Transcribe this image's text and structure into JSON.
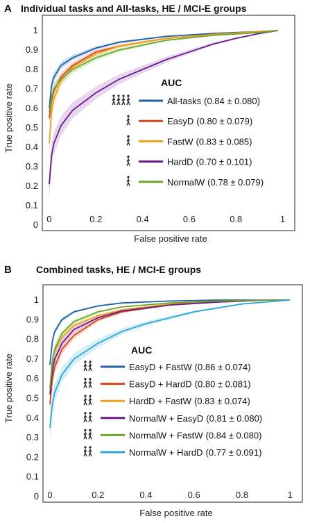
{
  "chart_data": [
    {
      "type": "line",
      "panel": "A",
      "title": "Individual tasks and All-tasks, HE / MCI-E groups",
      "xlabel": "False positive rate",
      "ylabel": "True positive rate",
      "xlim": [
        0,
        1
      ],
      "ylim": [
        0,
        1
      ],
      "xticks": [
        "0",
        "0.2",
        "0.4",
        "0.6",
        "0.8",
        "1"
      ],
      "yticks": [
        "0",
        "0.1",
        "0.2",
        "0.3",
        "0.4",
        "0.5",
        "0.6",
        "0.7",
        "0.8",
        "0.9",
        "1"
      ],
      "legend_title": "AUC",
      "legend_placement": "right",
      "grid": false,
      "series": [
        {
          "name": "All-tasks",
          "auc": "(0.84 ± 0.080)",
          "color": "#1f5fa8",
          "band": "#9ec3e0",
          "icon": "four-walkers-icon",
          "x": [
            0,
            0.01,
            0.02,
            0.05,
            0.1,
            0.2,
            0.3,
            0.5,
            0.7,
            0.9,
            0.98
          ],
          "y": [
            0.6,
            0.72,
            0.76,
            0.82,
            0.86,
            0.91,
            0.94,
            0.97,
            0.985,
            0.995,
            1
          ]
        },
        {
          "name": "EasyD",
          "auc": "(0.80 ± 0.079)",
          "color": "#d9441c",
          "band": "#f1b39e",
          "icon": "walker-1-icon",
          "x": [
            0,
            0.01,
            0.02,
            0.05,
            0.1,
            0.2,
            0.3,
            0.5,
            0.7,
            0.9,
            0.98
          ],
          "y": [
            0.55,
            0.64,
            0.69,
            0.76,
            0.82,
            0.89,
            0.92,
            0.96,
            0.98,
            0.995,
            1
          ]
        },
        {
          "name": "FastW",
          "auc": "(0.83 ± 0.085)",
          "color": "#eda21d",
          "band": "#f6d594",
          "icon": "walker-2-icon",
          "x": [
            0,
            0.01,
            0.02,
            0.05,
            0.1,
            0.2,
            0.3,
            0.5,
            0.7,
            0.9,
            0.98
          ],
          "y": [
            0.42,
            0.58,
            0.65,
            0.74,
            0.81,
            0.88,
            0.92,
            0.96,
            0.98,
            0.995,
            1
          ]
        },
        {
          "name": "HardD",
          "auc": "(0.70 ± 0.101)",
          "color": "#6a1a8c",
          "band": "#d3b7e0",
          "icon": "walker-3-icon",
          "x": [
            0,
            0.01,
            0.02,
            0.05,
            0.1,
            0.2,
            0.3,
            0.4,
            0.5,
            0.6,
            0.7,
            0.8,
            0.9,
            0.98
          ],
          "y": [
            0.21,
            0.36,
            0.42,
            0.51,
            0.59,
            0.68,
            0.75,
            0.8,
            0.85,
            0.89,
            0.93,
            0.96,
            0.985,
            1
          ]
        },
        {
          "name": "NormalW",
          "auc": "(0.78 ± 0.079)",
          "color": "#6aa82c",
          "band": "#c4e0a6",
          "icon": "walker-icon",
          "x": [
            0,
            0.01,
            0.02,
            0.05,
            0.1,
            0.2,
            0.3,
            0.5,
            0.7,
            0.9,
            0.98
          ],
          "y": [
            0.58,
            0.66,
            0.7,
            0.75,
            0.8,
            0.86,
            0.9,
            0.95,
            0.975,
            0.99,
            1
          ]
        }
      ]
    },
    {
      "type": "line",
      "panel": "B",
      "title": "Combined tasks, HE / MCI-E groups",
      "xlabel": "False positive rate",
      "ylabel": "True positive rate",
      "xlim": [
        0,
        1
      ],
      "ylim": [
        0,
        1
      ],
      "xticks": [
        "0",
        "0.2",
        "0.4",
        "0.6",
        "0.8",
        "1"
      ],
      "yticks": [
        "0",
        "0.1",
        "0.2",
        "0.3",
        "0.4",
        "0.5",
        "0.6",
        "0.7",
        "0.8",
        "0.9",
        "1"
      ],
      "legend_title": "AUC",
      "legend_placement": "right",
      "grid": false,
      "series": [
        {
          "name": "EasyD + FastW",
          "auc": "(0.86 ± 0.074)",
          "color": "#1f5fa8",
          "band": "#9ec3e0",
          "icon": "walker-pair-1-2-icon",
          "x": [
            0,
            0.01,
            0.02,
            0.05,
            0.1,
            0.2,
            0.3,
            0.5,
            0.7,
            0.9,
            1
          ],
          "y": [
            0.67,
            0.79,
            0.84,
            0.9,
            0.94,
            0.97,
            0.985,
            0.995,
            1,
            1,
            1
          ]
        },
        {
          "name": "EasyD + HardD",
          "auc": "(0.80 ± 0.081)",
          "color": "#d9441c",
          "band": "#f1b39e",
          "icon": "walker-pair-1-3-icon",
          "x": [
            0,
            0.01,
            0.02,
            0.05,
            0.1,
            0.2,
            0.3,
            0.5,
            0.7,
            0.9,
            1
          ],
          "y": [
            0.47,
            0.6,
            0.66,
            0.75,
            0.82,
            0.9,
            0.94,
            0.975,
            0.99,
            1,
            1
          ]
        },
        {
          "name": "HardD + FastW",
          "auc": "(0.83 ± 0.074)",
          "color": "#eda21d",
          "band": "#f6d594",
          "icon": "walker-pair-3-2-icon",
          "x": [
            0,
            0.01,
            0.02,
            0.05,
            0.1,
            0.2,
            0.3,
            0.5,
            0.7,
            0.9,
            1
          ],
          "y": [
            0.55,
            0.68,
            0.74,
            0.81,
            0.87,
            0.92,
            0.95,
            0.98,
            0.99,
            1,
            1
          ]
        },
        {
          "name": "NormalW + EasyD",
          "auc": "(0.81 ± 0.080)",
          "color": "#6a1a8c",
          "band": "#d3b7e0",
          "icon": "walker-pair-n-1-icon",
          "x": [
            0,
            0.01,
            0.02,
            0.05,
            0.1,
            0.2,
            0.3,
            0.5,
            0.7,
            0.9,
            1
          ],
          "y": [
            0.52,
            0.64,
            0.7,
            0.78,
            0.85,
            0.91,
            0.945,
            0.975,
            0.99,
            1,
            1
          ]
        },
        {
          "name": "NormalW + FastW",
          "auc": "(0.84 ± 0.080)",
          "color": "#6aa82c",
          "band": "#c4e0a6",
          "icon": "walker-pair-n-2-icon",
          "x": [
            0,
            0.01,
            0.02,
            0.05,
            0.1,
            0.2,
            0.3,
            0.5,
            0.7,
            0.9,
            1
          ],
          "y": [
            0.55,
            0.69,
            0.75,
            0.83,
            0.89,
            0.94,
            0.965,
            0.985,
            0.995,
            1,
            1
          ]
        },
        {
          "name": "NormalW + HardD",
          "auc": "(0.77 ± 0.091)",
          "color": "#2aa8d8",
          "band": "#b3e0f2",
          "icon": "walker-pair-n-3-icon",
          "x": [
            0,
            0.01,
            0.02,
            0.05,
            0.1,
            0.2,
            0.3,
            0.4,
            0.5,
            0.6,
            0.7,
            0.8,
            0.9,
            1
          ],
          "y": [
            0.35,
            0.47,
            0.53,
            0.62,
            0.7,
            0.78,
            0.84,
            0.88,
            0.91,
            0.94,
            0.96,
            0.98,
            0.99,
            1
          ]
        }
      ]
    }
  ]
}
